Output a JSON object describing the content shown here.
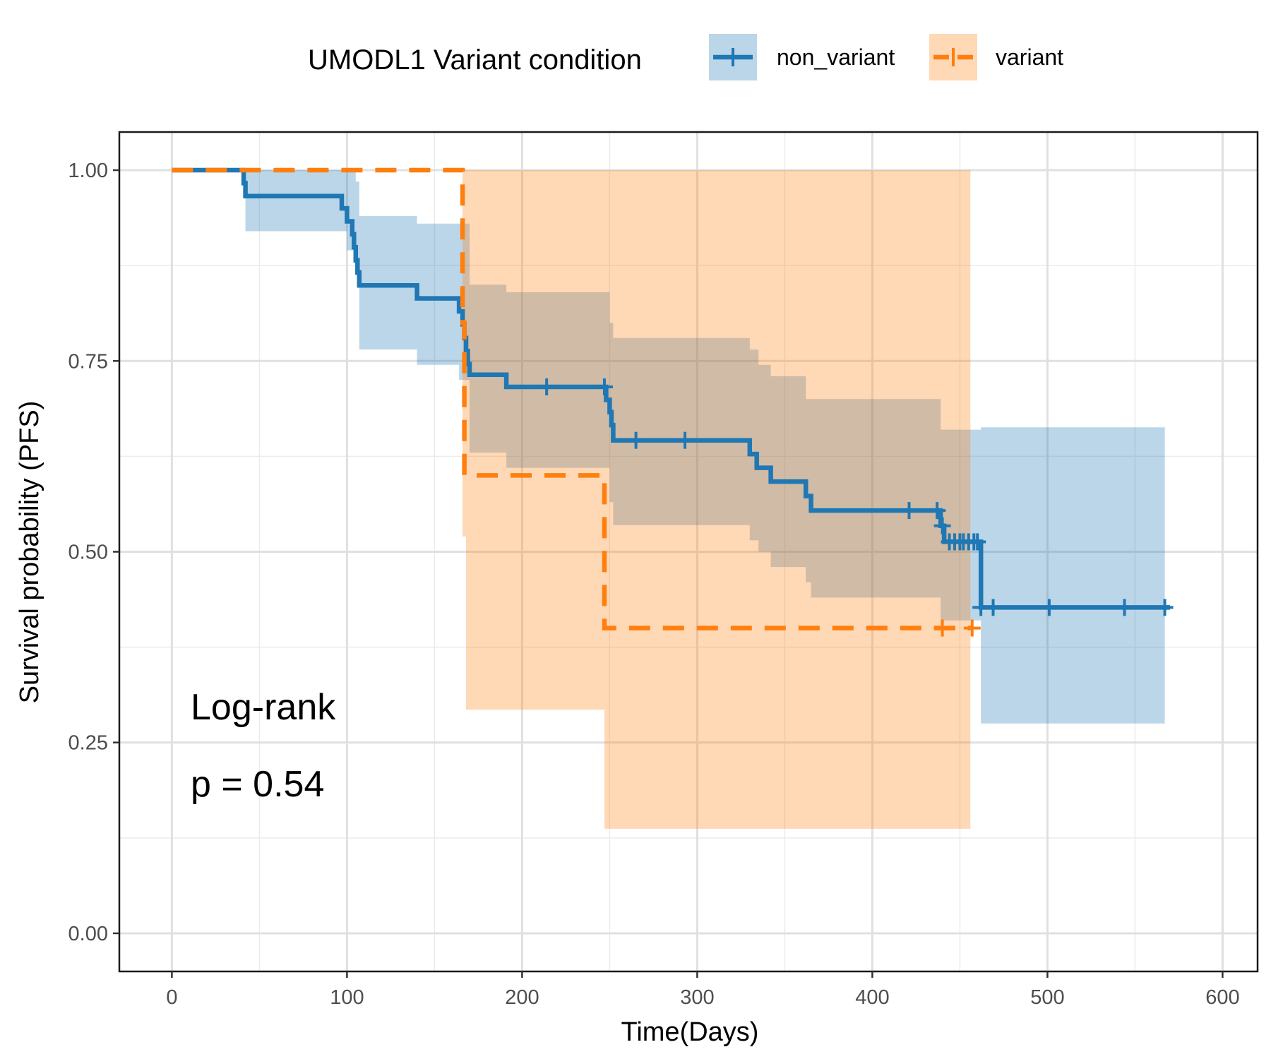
{
  "chart_data": {
    "type": "line",
    "subtype": "kaplan-meier",
    "xlabel": "Time(Days)",
    "ylabel": "Survival probability (PFS)",
    "xlim": [
      -30,
      620
    ],
    "ylim": [
      -0.05,
      1.05
    ],
    "x_ticks": [
      0,
      100,
      200,
      300,
      400,
      500,
      600
    ],
    "x_tick_labels": [
      "0",
      "100",
      "200",
      "300",
      "400",
      "500",
      "600"
    ],
    "y_ticks": [
      0,
      0.25,
      0.5,
      0.75,
      1.0
    ],
    "y_tick_labels": [
      "0.00",
      "0.25",
      "0.50",
      "0.75",
      "1.00"
    ],
    "grid": true,
    "legend": {
      "title": "UMODL1 Variant condition",
      "position": "top"
    },
    "annotations": {
      "test": "Log-rank",
      "pvalue": "p = 0.54"
    },
    "series": [
      {
        "name": "non_variant",
        "color": "#1f77b4",
        "line_style": "solid",
        "steps": [
          [
            0,
            1.0
          ],
          [
            41,
            0.983
          ],
          [
            42,
            0.966
          ],
          [
            97,
            0.95
          ],
          [
            100,
            0.933
          ],
          [
            103,
            0.916
          ],
          [
            104,
            0.899
          ],
          [
            105,
            0.882
          ],
          [
            106,
            0.866
          ],
          [
            107,
            0.849
          ],
          [
            140,
            0.832
          ],
          [
            164,
            0.815
          ],
          [
            166,
            0.798
          ],
          [
            167,
            0.78
          ],
          [
            168,
            0.763
          ],
          [
            169,
            0.746
          ],
          [
            170,
            0.732
          ],
          [
            191,
            0.716
          ],
          [
            248,
            0.699
          ],
          [
            250,
            0.683
          ],
          [
            251,
            0.666
          ],
          [
            252,
            0.646
          ],
          [
            330,
            0.628
          ],
          [
            334,
            0.61
          ],
          [
            342,
            0.592
          ],
          [
            362,
            0.573
          ],
          [
            365,
            0.554
          ],
          [
            439,
            0.534
          ],
          [
            441,
            0.513
          ],
          [
            462,
            0.427
          ],
          [
            570,
            0.427
          ]
        ],
        "censor_times": [
          214,
          247,
          265,
          293,
          421,
          437,
          440,
          444,
          447,
          450,
          452,
          455,
          458,
          460,
          462,
          469,
          501,
          544,
          567
        ],
        "ci_steps": [
          [
            0,
            1.0,
            1.0
          ],
          [
            42,
            1.0,
            0.92
          ],
          [
            100,
            1.0,
            0.895
          ],
          [
            105,
            0.985,
            0.865
          ],
          [
            107,
            0.94,
            0.765
          ],
          [
            140,
            0.93,
            0.745
          ],
          [
            164,
            0.93,
            0.725
          ],
          [
            170,
            0.85,
            0.63
          ],
          [
            191,
            0.84,
            0.61
          ],
          [
            250,
            0.8,
            0.565
          ],
          [
            252,
            0.78,
            0.535
          ],
          [
            330,
            0.765,
            0.515
          ],
          [
            335,
            0.745,
            0.5
          ],
          [
            342,
            0.73,
            0.48
          ],
          [
            362,
            0.7,
            0.46
          ],
          [
            365,
            0.7,
            0.44
          ],
          [
            439,
            0.66,
            0.41
          ],
          [
            462,
            0.663,
            0.275
          ],
          [
            567,
            0.663,
            0.275
          ]
        ]
      },
      {
        "name": "variant",
        "color": "#ff7f0e",
        "line_style": "dashed",
        "steps": [
          [
            0,
            1.0
          ],
          [
            166,
            0.8
          ],
          [
            167,
            0.6
          ],
          [
            247,
            0.4
          ],
          [
            457,
            0.4
          ]
        ],
        "censor_times": [
          440,
          457
        ],
        "ci_steps": [
          [
            166,
            1.0,
            0.52
          ],
          [
            168,
            1.0,
            0.293
          ],
          [
            247,
            1.0,
            0.137
          ],
          [
            456,
            1.0,
            0.137
          ]
        ]
      }
    ]
  }
}
